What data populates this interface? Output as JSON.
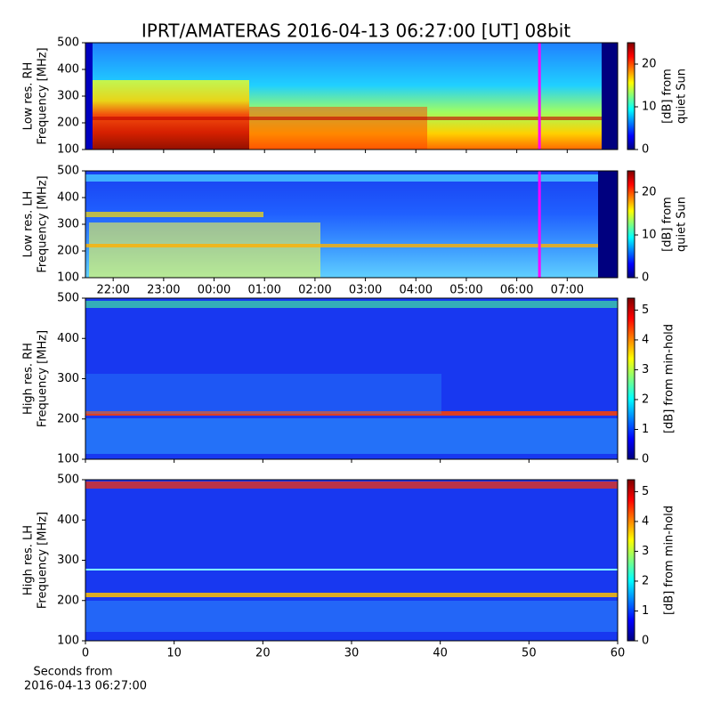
{
  "title": "IPRT/AMATERAS 2016-04-13 06:27:00 [UT]   08bit",
  "xlabel": [
    "Seconds from",
    "2016-04-13 06:27:00"
  ],
  "chart_data": [
    {
      "type": "heatmap",
      "ylabel": [
        "Low res. RH",
        "Frequency [MHz]"
      ],
      "ylim": [
        100,
        500
      ],
      "yticks": [
        100,
        200,
        300,
        400,
        500
      ],
      "colorbar_label": [
        "[dB] from",
        "quiet Sun"
      ],
      "clim": [
        0,
        25
      ],
      "cticks": [
        0,
        10,
        20
      ],
      "marker": 30.45,
      "marker_color": "#ff00ff"
    },
    {
      "type": "heatmap",
      "ylabel": [
        "Low res. LH",
        "Frequency [MHz]"
      ],
      "ylim": [
        100,
        500
      ],
      "yticks": [
        100,
        200,
        300,
        400,
        500
      ],
      "colorbar_label": [
        "[dB] from",
        "quiet Sun"
      ],
      "clim": [
        0,
        25
      ],
      "cticks": [
        0,
        10,
        20
      ],
      "marker": 30.45,
      "marker_color": "#ff00ff",
      "xlim": [
        21.45,
        32
      ],
      "xticks": [
        {
          "value": 22,
          "label": "22:00"
        },
        {
          "value": 23,
          "label": "23:00"
        },
        {
          "value": 24,
          "label": "00:00"
        },
        {
          "value": 25,
          "label": "01:00"
        },
        {
          "value": 26,
          "label": "02:00"
        },
        {
          "value": 27,
          "label": "03:00"
        },
        {
          "value": 28,
          "label": "04:00"
        },
        {
          "value": 29,
          "label": "05:00"
        },
        {
          "value": 30,
          "label": "06:00"
        },
        {
          "value": 31,
          "label": "07:00"
        }
      ]
    },
    {
      "type": "heatmap",
      "ylabel": [
        "High res. RH",
        "Frequency [MHz]"
      ],
      "ylim": [
        100,
        500
      ],
      "yticks": [
        100,
        200,
        300,
        400,
        500
      ],
      "colorbar_label": [
        "[dB] from min-hold"
      ],
      "clim": [
        0,
        5.4
      ],
      "cticks": [
        0,
        1,
        2,
        3,
        4,
        5
      ]
    },
    {
      "type": "heatmap",
      "ylabel": [
        "High res. LH",
        "Frequency [MHz]"
      ],
      "ylim": [
        100,
        500
      ],
      "yticks": [
        100,
        200,
        300,
        400,
        500
      ],
      "colorbar_label": [
        "[dB] from min-hold"
      ],
      "clim": [
        0,
        5.4
      ],
      "cticks": [
        0,
        1,
        2,
        3,
        4,
        5
      ],
      "xlim": [
        0,
        60
      ],
      "xticks": [
        0,
        10,
        20,
        30,
        40,
        50,
        60
      ]
    }
  ]
}
